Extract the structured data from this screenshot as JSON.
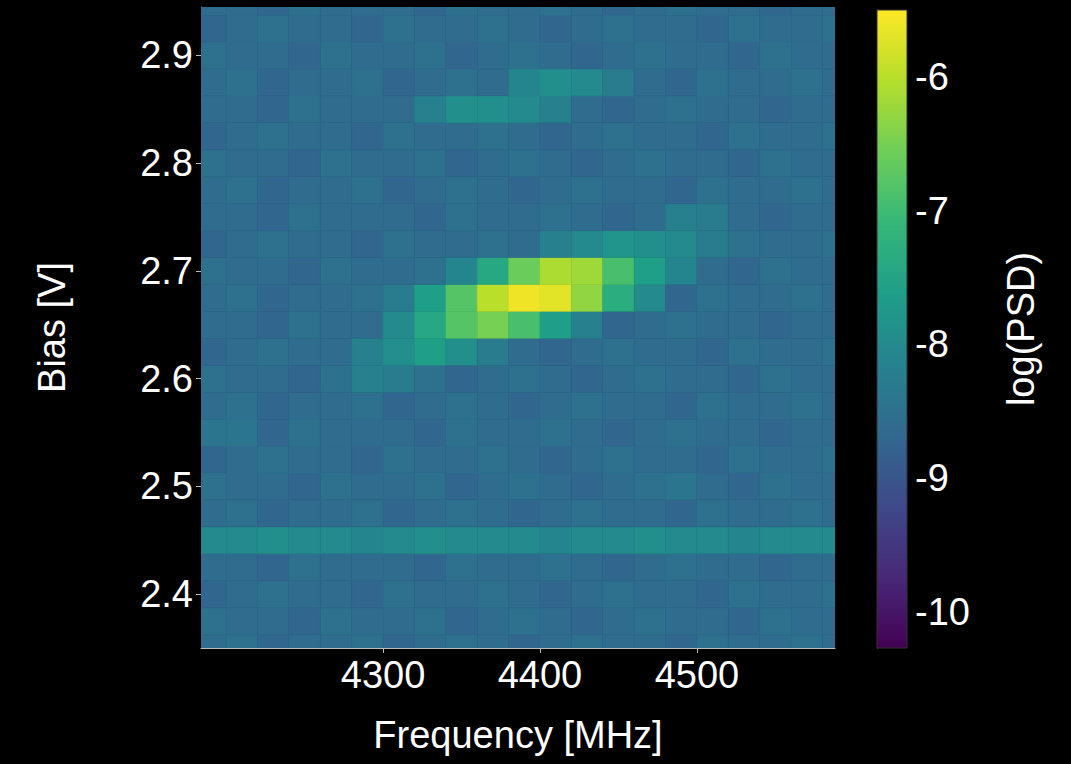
{
  "chart_data": {
    "type": "heatmap",
    "x_label": "Frequency [MHz]",
    "y_label": "Bias [V]",
    "xlim": [
      4184,
      4588
    ],
    "xticks": [
      4300,
      4400,
      4500
    ],
    "ylim": [
      2.35,
      2.945
    ],
    "yticks": [
      2.4,
      2.5,
      2.6,
      2.7,
      2.8,
      2.9
    ],
    "x": [
      4190,
      4210,
      4230,
      4250,
      4270,
      4290,
      4310,
      4330,
      4350,
      4370,
      4390,
      4410,
      4430,
      4450,
      4470,
      4490,
      4510,
      4530,
      4550,
      4570,
      4590
    ],
    "y": [
      2.35,
      2.375,
      2.4,
      2.425,
      2.45,
      2.475,
      2.5,
      2.525,
      2.55,
      2.575,
      2.6,
      2.625,
      2.65,
      2.675,
      2.7,
      2.725,
      2.75,
      2.775,
      2.8,
      2.825,
      2.85,
      2.875,
      2.9,
      2.925,
      2.95
    ],
    "cells": [
      [
        -8.6,
        -8.5,
        -8.7,
        -8.6,
        -8.6,
        -8.5,
        -8.7,
        -8.6,
        -8.5,
        -8.6,
        -8.7,
        -8.6,
        -8.5,
        -8.6,
        -8.6,
        -8.7,
        -8.5,
        -8.6,
        -8.6,
        -8.5,
        -8.6
      ],
      [
        -8.5,
        -8.6,
        -8.6,
        -8.7,
        -8.5,
        -8.6,
        -8.6,
        -8.5,
        -8.7,
        -8.6,
        -8.5,
        -8.6,
        -8.7,
        -8.6,
        -8.5,
        -8.6,
        -8.6,
        -8.7,
        -8.5,
        -8.6,
        -8.6
      ],
      [
        -8.7,
        -8.6,
        -8.5,
        -8.6,
        -8.6,
        -8.7,
        -8.5,
        -8.6,
        -8.6,
        -8.5,
        -8.6,
        -8.7,
        -8.6,
        -8.5,
        -8.6,
        -8.6,
        -8.7,
        -8.5,
        -8.6,
        -8.6,
        -8.5
      ],
      [
        -8.6,
        -8.6,
        -8.7,
        -8.5,
        -8.6,
        -8.6,
        -8.6,
        -8.7,
        -8.5,
        -8.6,
        -8.6,
        -8.5,
        -8.6,
        -8.7,
        -8.6,
        -8.5,
        -8.6,
        -8.6,
        -8.7,
        -8.6,
        -8.6
      ],
      [
        -8.0,
        -8.0,
        -7.9,
        -8.0,
        -8.0,
        -8.1,
        -8.0,
        -7.9,
        -8.0,
        -8.0,
        -8.0,
        -8.1,
        -8.0,
        -8.0,
        -7.9,
        -8.0,
        -8.0,
        -8.1,
        -8.0,
        -8.0,
        -8.0
      ],
      [
        -8.6,
        -8.5,
        -8.7,
        -8.6,
        -8.6,
        -8.5,
        -8.7,
        -8.6,
        -8.5,
        -8.6,
        -8.7,
        -8.6,
        -8.5,
        -8.6,
        -8.6,
        -8.7,
        -8.5,
        -8.6,
        -8.6,
        -8.5,
        -8.6
      ],
      [
        -8.5,
        -8.6,
        -8.6,
        -8.7,
        -8.5,
        -8.6,
        -8.6,
        -8.5,
        -8.7,
        -8.6,
        -8.5,
        -8.6,
        -8.7,
        -8.6,
        -8.5,
        -8.4,
        -8.6,
        -8.7,
        -8.5,
        -8.6,
        -8.6
      ],
      [
        -8.7,
        -8.6,
        -8.5,
        -8.6,
        -8.6,
        -8.7,
        -8.5,
        -8.6,
        -8.6,
        -8.5,
        -8.6,
        -8.7,
        -8.6,
        -8.5,
        -8.6,
        -8.6,
        -8.7,
        -8.5,
        -8.6,
        -8.6,
        -8.5
      ],
      [
        -8.4,
        -8.4,
        -8.7,
        -8.5,
        -8.6,
        -8.6,
        -8.6,
        -8.7,
        -8.5,
        -8.6,
        -8.6,
        -8.5,
        -8.6,
        -8.7,
        -8.6,
        -8.5,
        -8.6,
        -8.6,
        -8.7,
        -8.6,
        -8.6
      ],
      [
        -8.6,
        -8.5,
        -8.7,
        -8.6,
        -8.6,
        -8.5,
        -8.7,
        -8.6,
        -8.5,
        -8.6,
        -8.7,
        -8.6,
        -8.5,
        -8.6,
        -8.6,
        -8.7,
        -8.5,
        -8.6,
        -8.6,
        -8.5,
        -8.6
      ],
      [
        -8.5,
        -8.6,
        -8.6,
        -8.7,
        -8.5,
        -8.2,
        -8.3,
        -8.5,
        -8.7,
        -8.6,
        -8.5,
        -8.6,
        -8.7,
        -8.6,
        -8.5,
        -8.6,
        -8.6,
        -8.7,
        -8.5,
        -8.6,
        -8.6
      ],
      [
        -8.7,
        -8.6,
        -8.5,
        -8.6,
        -8.6,
        -8.2,
        -7.9,
        -7.6,
        -7.9,
        -8.3,
        -8.6,
        -8.7,
        -8.6,
        -8.5,
        -8.6,
        -8.6,
        -8.7,
        -8.5,
        -8.6,
        -8.6,
        -8.5
      ],
      [
        -8.6,
        -8.6,
        -8.7,
        -8.5,
        -8.6,
        -8.6,
        -8.0,
        -7.4,
        -6.8,
        -6.5,
        -6.9,
        -7.6,
        -8.2,
        -8.7,
        -8.6,
        -8.5,
        -8.6,
        -8.6,
        -8.7,
        -8.6,
        -8.6
      ],
      [
        -8.6,
        -8.5,
        -8.7,
        -8.6,
        -8.6,
        -8.5,
        -8.3,
        -7.6,
        -6.8,
        -6.0,
        -5.6,
        -5.7,
        -6.3,
        -7.3,
        -8.0,
        -8.7,
        -8.5,
        -8.6,
        -8.6,
        -8.5,
        -8.6
      ],
      [
        -8.5,
        -8.6,
        -8.6,
        -8.7,
        -8.5,
        -8.6,
        -8.6,
        -8.5,
        -8.1,
        -7.4,
        -6.6,
        -6.1,
        -6.2,
        -6.9,
        -7.6,
        -8.1,
        -8.6,
        -8.7,
        -8.5,
        -8.6,
        -8.6
      ],
      [
        -8.7,
        -8.6,
        -8.5,
        -8.6,
        -8.6,
        -8.7,
        -8.5,
        -8.6,
        -8.6,
        -8.5,
        -8.6,
        -8.2,
        -8.0,
        -7.8,
        -7.9,
        -8.0,
        -8.3,
        -8.5,
        -8.6,
        -8.6,
        -8.5
      ],
      [
        -8.6,
        -8.6,
        -8.7,
        -8.5,
        -8.6,
        -8.6,
        -8.6,
        -8.7,
        -8.5,
        -8.6,
        -8.6,
        -8.5,
        -8.6,
        -8.7,
        -8.6,
        -8.2,
        -8.3,
        -8.6,
        -8.7,
        -8.6,
        -8.6
      ],
      [
        -8.6,
        -8.5,
        -8.7,
        -8.6,
        -8.6,
        -8.5,
        -8.7,
        -8.6,
        -8.5,
        -8.6,
        -8.7,
        -8.6,
        -8.5,
        -8.6,
        -8.6,
        -8.7,
        -8.5,
        -8.6,
        -8.6,
        -8.5,
        -8.6
      ],
      [
        -8.5,
        -8.6,
        -8.6,
        -8.7,
        -8.5,
        -8.6,
        -8.6,
        -8.5,
        -8.7,
        -8.6,
        -8.5,
        -8.6,
        -8.7,
        -8.6,
        -8.5,
        -8.6,
        -8.6,
        -8.7,
        -8.5,
        -8.6,
        -8.6
      ],
      [
        -8.7,
        -8.6,
        -8.5,
        -8.6,
        -8.6,
        -8.7,
        -8.5,
        -8.6,
        -8.6,
        -8.5,
        -8.6,
        -8.7,
        -8.6,
        -8.5,
        -8.6,
        -8.6,
        -8.7,
        -8.5,
        -8.6,
        -8.6,
        -8.5
      ],
      [
        -8.6,
        -8.6,
        -8.7,
        -8.5,
        -8.6,
        -8.6,
        -8.6,
        -8.2,
        -7.9,
        -7.9,
        -8.0,
        -8.2,
        -8.6,
        -8.7,
        -8.6,
        -8.5,
        -8.6,
        -8.6,
        -8.7,
        -8.6,
        -8.6
      ],
      [
        -8.6,
        -8.5,
        -8.7,
        -8.6,
        -8.6,
        -8.5,
        -8.7,
        -8.6,
        -8.5,
        -8.6,
        -8.1,
        -7.9,
        -8.0,
        -8.3,
        -8.6,
        -8.7,
        -8.5,
        -8.6,
        -8.6,
        -8.5,
        -8.6
      ],
      [
        -8.5,
        -8.6,
        -8.6,
        -8.7,
        -8.5,
        -8.6,
        -8.6,
        -8.5,
        -8.7,
        -8.6,
        -8.5,
        -8.6,
        -8.7,
        -8.6,
        -8.5,
        -8.6,
        -8.6,
        -8.7,
        -8.5,
        -8.6,
        -8.6
      ],
      [
        -8.7,
        -8.6,
        -8.5,
        -8.6,
        -8.6,
        -8.7,
        -8.5,
        -8.6,
        -8.6,
        -8.5,
        -8.6,
        -8.7,
        -8.6,
        -8.5,
        -8.6,
        -8.6,
        -8.7,
        -8.5,
        -8.6,
        -8.6,
        -8.5
      ],
      [
        -8.6,
        -8.6,
        -8.7,
        -8.5,
        -8.6,
        -8.6,
        -8.6,
        -8.7,
        -8.5,
        -8.6,
        -8.6,
        -8.5,
        -8.6,
        -8.7,
        -8.6,
        -8.5,
        -8.6,
        -8.6,
        -8.7,
        -8.6,
        -8.6
      ]
    ],
    "colorbar": {
      "label": "log(PSD)",
      "range": [
        -10.27,
        -5.5
      ],
      "ticks": [
        -10,
        -9,
        -8,
        -7,
        -6
      ]
    }
  }
}
